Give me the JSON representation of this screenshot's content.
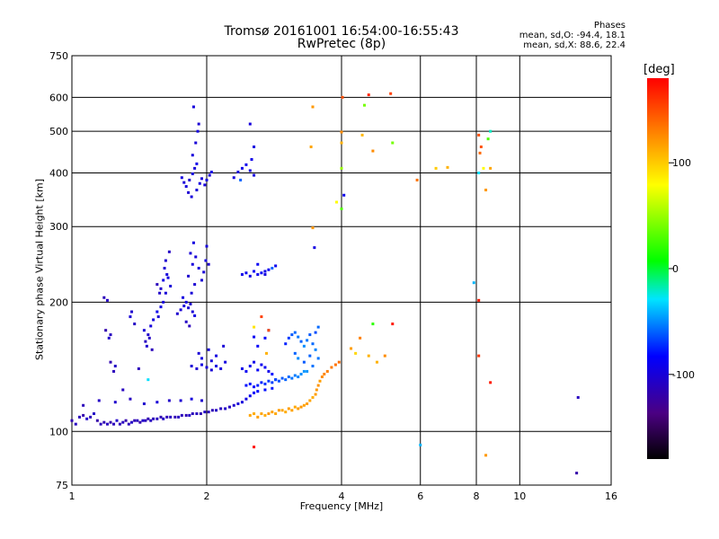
{
  "chart_data": {
    "type": "scatter",
    "title": "Tromsø 20161001 16:54:00-16:55:43",
    "subtitle": "RwPretec (8p)",
    "phases": {
      "heading": "Phases",
      "o_line": "mean, sd,O: -94.4, 18.1",
      "x_line": "mean, sd,X:  88.6, 22.4"
    },
    "xlabel": "Frequency [MHz]",
    "ylabel": "Stationary phase Virtual Height [km]",
    "xscale": "log",
    "yscale": "log",
    "xlim": [
      1,
      16
    ],
    "ylim": [
      75,
      750
    ],
    "grid": true,
    "x_ticks": [
      1,
      2,
      4,
      6,
      8,
      10,
      16
    ],
    "y_ticks": [
      75,
      100,
      200,
      300,
      400,
      500,
      600,
      750
    ],
    "colorbar": {
      "label": "[deg]",
      "range": [
        -180,
        180
      ],
      "ticks": [
        100,
        0,
        -100
      ]
    },
    "points": [
      [
        1.0,
        106,
        -115
      ],
      [
        1.02,
        104,
        -110
      ],
      [
        1.04,
        108,
        -112
      ],
      [
        1.06,
        109,
        -118
      ],
      [
        1.08,
        107,
        -105
      ],
      [
        1.1,
        108,
        -113
      ],
      [
        1.12,
        110,
        -108
      ],
      [
        1.14,
        106,
        -120
      ],
      [
        1.16,
        104,
        -112
      ],
      [
        1.18,
        105,
        -116
      ],
      [
        1.2,
        104,
        -110
      ],
      [
        1.22,
        105,
        -118
      ],
      [
        1.24,
        104,
        -112
      ],
      [
        1.26,
        106,
        -106
      ],
      [
        1.28,
        104,
        -114
      ],
      [
        1.3,
        105,
        -110
      ],
      [
        1.32,
        106,
        -119
      ],
      [
        1.34,
        104,
        -112
      ],
      [
        1.36,
        105,
        -108
      ],
      [
        1.38,
        106,
        -115
      ],
      [
        1.4,
        106,
        -111
      ],
      [
        1.42,
        105,
        -118
      ],
      [
        1.44,
        106,
        -105
      ],
      [
        1.46,
        106,
        -112
      ],
      [
        1.48,
        107,
        -116
      ],
      [
        1.5,
        106,
        -109
      ],
      [
        1.52,
        107,
        -113
      ],
      [
        1.55,
        107,
        -110
      ],
      [
        1.58,
        108,
        -115
      ],
      [
        1.6,
        107,
        -108
      ],
      [
        1.63,
        108,
        -114
      ],
      [
        1.66,
        108,
        -110
      ],
      [
        1.7,
        108,
        -116
      ],
      [
        1.73,
        108,
        -109
      ],
      [
        1.76,
        109,
        -112
      ],
      [
        1.8,
        109,
        -115
      ],
      [
        1.83,
        109,
        -107
      ],
      [
        1.86,
        110,
        -113
      ],
      [
        1.9,
        110,
        -110
      ],
      [
        1.94,
        110,
        -116
      ],
      [
        1.98,
        111,
        -108
      ],
      [
        2.02,
        111,
        -112
      ],
      [
        2.06,
        112,
        -114
      ],
      [
        2.1,
        112,
        -109
      ],
      [
        2.15,
        113,
        -111
      ],
      [
        2.2,
        113,
        -107
      ],
      [
        2.25,
        114,
        -110
      ],
      [
        2.3,
        115,
        -104
      ],
      [
        2.35,
        116,
        -100
      ],
      [
        2.4,
        117,
        -98
      ],
      [
        2.45,
        119,
        -95
      ],
      [
        2.5,
        121,
        -90
      ],
      [
        2.55,
        123,
        -85
      ],
      [
        2.6,
        124,
        -82
      ],
      [
        2.7,
        125,
        -80
      ],
      [
        2.8,
        126,
        -78
      ],
      [
        1.06,
        115,
        -112
      ],
      [
        1.15,
        118,
        -108
      ],
      [
        1.25,
        117,
        -105
      ],
      [
        1.35,
        119,
        -110
      ],
      [
        1.45,
        116,
        -104
      ],
      [
        1.55,
        117,
        -100
      ],
      [
        1.65,
        118,
        -106
      ],
      [
        1.75,
        118,
        -102
      ],
      [
        1.85,
        119,
        -98
      ],
      [
        1.95,
        118,
        -104
      ],
      [
        1.18,
        205,
        -112
      ],
      [
        1.2,
        202,
        -108
      ],
      [
        1.19,
        172,
        -118
      ],
      [
        1.22,
        168,
        -110
      ],
      [
        1.21,
        165,
        -105
      ],
      [
        1.22,
        145,
        -116
      ],
      [
        1.25,
        142,
        -108
      ],
      [
        1.24,
        138,
        -112
      ],
      [
        1.3,
        125,
        -110
      ],
      [
        1.35,
        185,
        -100
      ],
      [
        1.38,
        178,
        -108
      ],
      [
        1.36,
        190,
        -104
      ],
      [
        1.41,
        140,
        -112
      ],
      [
        1.45,
        172,
        -100
      ],
      [
        1.48,
        168,
        -105
      ],
      [
        1.46,
        162,
        -110
      ],
      [
        1.5,
        176,
        -98
      ],
      [
        1.47,
        158,
        -104
      ],
      [
        1.52,
        182,
        -96
      ],
      [
        1.49,
        165,
        -108
      ],
      [
        1.51,
        155,
        -112
      ],
      [
        1.55,
        190,
        -90
      ],
      [
        1.58,
        195,
        -95
      ],
      [
        1.56,
        185,
        -102
      ],
      [
        1.6,
        200,
        -98
      ],
      [
        1.62,
        210,
        -100
      ],
      [
        1.58,
        215,
        -105
      ],
      [
        1.6,
        225,
        -95
      ],
      [
        1.63,
        232,
        -98
      ],
      [
        1.61,
        240,
        -102
      ],
      [
        1.64,
        228,
        -96
      ],
      [
        1.66,
        218,
        -100
      ],
      [
        1.62,
        250,
        -104
      ],
      [
        1.65,
        262,
        -108
      ],
      [
        1.55,
        220,
        -112
      ],
      [
        1.57,
        210,
        -106
      ],
      [
        1.72,
        188,
        -104
      ],
      [
        1.75,
        192,
        -100
      ],
      [
        1.78,
        196,
        -98
      ],
      [
        1.8,
        200,
        -96
      ],
      [
        1.82,
        194,
        -102
      ],
      [
        1.84,
        198,
        -104
      ],
      [
        1.86,
        190,
        -100
      ],
      [
        1.88,
        186,
        -96
      ],
      [
        1.8,
        180,
        -108
      ],
      [
        1.83,
        176,
        -112
      ],
      [
        1.77,
        205,
        -96
      ],
      [
        1.85,
        210,
        -100
      ],
      [
        1.88,
        220,
        -102
      ],
      [
        1.82,
        230,
        -104
      ],
      [
        1.86,
        245,
        -98
      ],
      [
        1.84,
        260,
        -100
      ],
      [
        1.87,
        275,
        -96
      ],
      [
        1.89,
        255,
        -100
      ],
      [
        1.92,
        240,
        -98
      ],
      [
        1.95,
        225,
        -102
      ],
      [
        1.97,
        235,
        -100
      ],
      [
        1.99,
        250,
        -96
      ],
      [
        2.0,
        270,
        -98
      ],
      [
        2.02,
        245,
        -104
      ],
      [
        1.76,
        390,
        -96
      ],
      [
        1.78,
        380,
        -100
      ],
      [
        1.8,
        372,
        -98
      ],
      [
        1.83,
        385,
        -104
      ],
      [
        1.86,
        398,
        -96
      ],
      [
        1.88,
        410,
        -100
      ],
      [
        1.9,
        420,
        -92
      ],
      [
        1.82,
        360,
        -102
      ],
      [
        1.85,
        352,
        -98
      ],
      [
        1.9,
        365,
        -100
      ],
      [
        1.93,
        378,
        -96
      ],
      [
        1.95,
        388,
        -100
      ],
      [
        1.98,
        375,
        -98
      ],
      [
        2.0,
        385,
        -96
      ],
      [
        2.03,
        395,
        -100
      ],
      [
        2.05,
        402,
        -94
      ],
      [
        1.86,
        440,
        -98
      ],
      [
        1.89,
        470,
        -100
      ],
      [
        1.91,
        500,
        -96
      ],
      [
        1.87,
        570,
        -98
      ],
      [
        1.92,
        520,
        -102
      ],
      [
        2.3,
        390,
        -96
      ],
      [
        2.35,
        402,
        -98
      ],
      [
        2.4,
        410,
        -92
      ],
      [
        2.45,
        418,
        -90
      ],
      [
        2.5,
        405,
        -94
      ],
      [
        2.55,
        395,
        -96
      ],
      [
        2.52,
        430,
        -92
      ],
      [
        2.55,
        460,
        -96
      ],
      [
        2.5,
        520,
        -98
      ],
      [
        2.38,
        385,
        -60
      ],
      [
        2.4,
        232,
        -92
      ],
      [
        2.45,
        234,
        -90
      ],
      [
        2.5,
        230,
        -94
      ],
      [
        2.55,
        236,
        -88
      ],
      [
        2.6,
        232,
        -90
      ],
      [
        2.65,
        234,
        -86
      ],
      [
        2.7,
        236,
        -92
      ],
      [
        2.75,
        238,
        -88
      ],
      [
        2.8,
        240,
        -60
      ],
      [
        2.85,
        243,
        -90
      ],
      [
        2.6,
        245,
        -88
      ],
      [
        2.7,
        232,
        -96
      ],
      [
        1.85,
        142,
        -100
      ],
      [
        1.9,
        140,
        -102
      ],
      [
        1.95,
        143,
        -96
      ],
      [
        2.0,
        141,
        -98
      ],
      [
        2.05,
        139,
        -100
      ],
      [
        2.1,
        142,
        -96
      ],
      [
        2.15,
        140,
        -98
      ],
      [
        2.2,
        145,
        -96
      ],
      [
        1.92,
        152,
        -100
      ],
      [
        2.02,
        155,
        -98
      ],
      [
        2.1,
        150,
        -96
      ],
      [
        2.18,
        158,
        -100
      ],
      [
        1.95,
        148,
        -96
      ],
      [
        2.05,
        146,
        -98
      ],
      [
        2.4,
        140,
        -92
      ],
      [
        2.45,
        138,
        -88
      ],
      [
        2.5,
        142,
        -90
      ],
      [
        2.55,
        145,
        -92
      ],
      [
        2.6,
        139,
        -86
      ],
      [
        2.65,
        143,
        -90
      ],
      [
        2.7,
        141,
        -88
      ],
      [
        2.75,
        138,
        -92
      ],
      [
        2.8,
        136,
        -80
      ],
      [
        2.85,
        132,
        -76
      ],
      [
        2.6,
        158,
        -86
      ],
      [
        2.7,
        165,
        -84
      ],
      [
        2.75,
        172,
        -82
      ],
      [
        2.55,
        166,
        -88
      ],
      [
        2.45,
        128,
        -80
      ],
      [
        2.5,
        129,
        -78
      ],
      [
        2.55,
        127,
        -82
      ],
      [
        2.6,
        128,
        -76
      ],
      [
        2.65,
        130,
        -74
      ],
      [
        2.7,
        129,
        -72
      ],
      [
        2.75,
        131,
        -70
      ],
      [
        2.8,
        130,
        -68
      ],
      [
        2.85,
        132,
        -66
      ],
      [
        2.9,
        131,
        -64
      ],
      [
        2.95,
        133,
        -62
      ],
      [
        3.0,
        132,
        -60
      ],
      [
        3.05,
        134,
        -58
      ],
      [
        3.1,
        133,
        -56
      ],
      [
        3.15,
        135,
        -54
      ],
      [
        3.2,
        134,
        -52
      ],
      [
        3.25,
        136,
        -50
      ],
      [
        3.3,
        138,
        -48
      ],
      [
        3.0,
        160,
        -75
      ],
      [
        3.05,
        165,
        -70
      ],
      [
        3.1,
        168,
        -62
      ],
      [
        3.15,
        170,
        -58
      ],
      [
        3.2,
        166,
        -55
      ],
      [
        3.25,
        162,
        -60
      ],
      [
        3.3,
        158,
        -50
      ],
      [
        3.35,
        163,
        -55
      ],
      [
        3.4,
        168,
        -62
      ],
      [
        3.45,
        160,
        -58
      ],
      [
        3.5,
        155,
        -52
      ],
      [
        3.55,
        148,
        -55
      ],
      [
        3.4,
        150,
        -60
      ],
      [
        3.3,
        145,
        -62
      ],
      [
        3.2,
        148,
        -50
      ],
      [
        3.45,
        142,
        -56
      ],
      [
        3.35,
        138,
        -48
      ],
      [
        3.5,
        170,
        -65
      ],
      [
        3.55,
        175,
        -58
      ],
      [
        3.15,
        152,
        -60
      ],
      [
        2.5,
        109,
        115
      ],
      [
        2.55,
        110,
        112
      ],
      [
        2.6,
        108,
        118
      ],
      [
        2.65,
        110,
        115
      ],
      [
        2.7,
        109,
        112
      ],
      [
        2.75,
        110,
        120
      ],
      [
        2.8,
        111,
        116
      ],
      [
        2.85,
        110,
        114
      ],
      [
        2.9,
        112,
        118
      ],
      [
        2.95,
        112,
        115
      ],
      [
        3.0,
        111,
        112
      ],
      [
        3.05,
        113,
        118
      ],
      [
        3.1,
        112,
        116
      ],
      [
        3.15,
        114,
        114
      ],
      [
        3.2,
        113,
        118
      ],
      [
        3.25,
        114,
        120
      ],
      [
        3.3,
        115,
        116
      ],
      [
        3.35,
        116,
        118
      ],
      [
        3.4,
        118,
        115
      ],
      [
        3.45,
        120,
        112
      ],
      [
        3.5,
        122,
        118
      ],
      [
        3.52,
        125,
        120
      ],
      [
        3.55,
        128,
        122
      ],
      [
        3.58,
        131,
        118
      ],
      [
        3.62,
        134,
        125
      ],
      [
        3.66,
        136,
        128
      ],
      [
        3.72,
        138,
        130
      ],
      [
        3.8,
        141,
        132
      ],
      [
        3.88,
        143,
        135
      ],
      [
        3.95,
        145,
        138
      ],
      [
        4.02,
        600,
        150
      ],
      [
        4.6,
        608,
        165
      ],
      [
        5.15,
        612,
        155
      ],
      [
        3.45,
        570,
        120
      ],
      [
        4.5,
        575,
        40
      ],
      [
        4.0,
        498,
        125
      ],
      [
        4.0,
        470,
        110
      ],
      [
        3.42,
        460,
        115
      ],
      [
        4.0,
        410,
        50
      ],
      [
        4.05,
        355,
        -90
      ],
      [
        4.0,
        330,
        30
      ],
      [
        3.9,
        342,
        80
      ],
      [
        3.48,
        268,
        -95
      ],
      [
        3.45,
        298,
        120
      ],
      [
        5.2,
        470,
        40
      ],
      [
        4.7,
        450,
        125
      ],
      [
        4.45,
        490,
        108
      ],
      [
        5.9,
        385,
        135
      ],
      [
        6.5,
        410,
        100
      ],
      [
        6.9,
        412,
        110
      ],
      [
        4.7,
        178,
        20
      ],
      [
        5.2,
        178,
        170
      ],
      [
        4.4,
        165,
        130
      ],
      [
        4.6,
        150,
        110
      ],
      [
        5.0,
        150,
        125
      ],
      [
        4.8,
        145,
        110
      ],
      [
        4.3,
        152,
        95
      ],
      [
        4.2,
        156,
        118
      ],
      [
        8.1,
        490,
        150
      ],
      [
        8.2,
        460,
        148
      ],
      [
        8.15,
        445,
        140
      ],
      [
        8.6,
        500,
        -20
      ],
      [
        8.5,
        480,
        30
      ],
      [
        8.1,
        400,
        -30
      ],
      [
        8.3,
        410,
        80
      ],
      [
        8.6,
        410,
        115
      ],
      [
        8.4,
        365,
        120
      ],
      [
        7.9,
        222,
        -40
      ],
      [
        8.1,
        202,
        170
      ],
      [
        8.1,
        150,
        160
      ],
      [
        8.6,
        130,
        170
      ],
      [
        6.0,
        93,
        -40
      ],
      [
        8.4,
        88,
        120
      ],
      [
        13.4,
        80,
        -120
      ],
      [
        13.5,
        120,
        -110
      ],
      [
        2.55,
        92,
        175
      ],
      [
        2.55,
        175,
        90
      ],
      [
        2.75,
        172,
        150
      ],
      [
        2.65,
        185,
        155
      ],
      [
        2.72,
        152,
        110
      ],
      [
        1.48,
        132,
        -30
      ]
    ]
  }
}
